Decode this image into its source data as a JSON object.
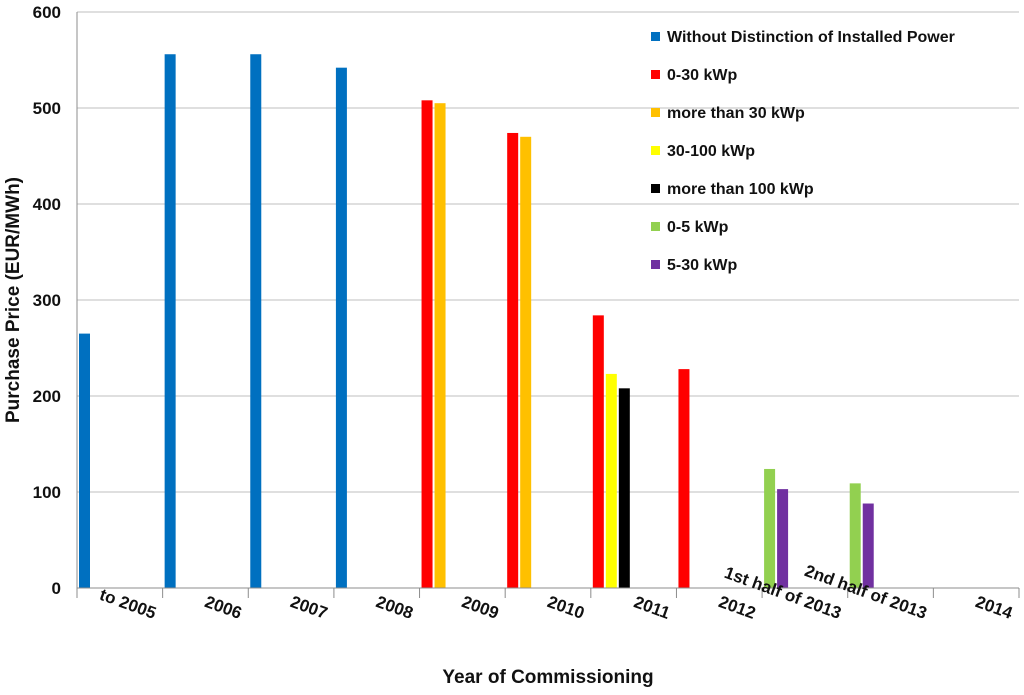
{
  "chart_data": {
    "type": "bar",
    "title": "",
    "xlabel": "Year of Commissioning",
    "ylabel": "Purchase Price (EUR/MWh)",
    "ylim": [
      0,
      600
    ],
    "yticks": [
      0,
      100,
      200,
      300,
      400,
      500,
      600
    ],
    "grid": true,
    "legend_position": "top-right",
    "categories": [
      "to 2005",
      "2006",
      "2007",
      "2008",
      "2009",
      "2010",
      "2011",
      "2012",
      "1st half of 2013",
      "2nd half of 2013",
      "2014"
    ],
    "series": [
      {
        "name": "Without Distinction of Installed Power",
        "color": "#0070C0",
        "values": [
          265,
          556,
          556,
          542,
          null,
          null,
          null,
          null,
          null,
          null,
          null
        ]
      },
      {
        "name": "0-30 kWp",
        "color": "#FF0000",
        "values": [
          null,
          null,
          null,
          null,
          508,
          474,
          284,
          228,
          null,
          null,
          null
        ]
      },
      {
        "name": "more than 30 kWp",
        "color": "#FFC000",
        "values": [
          null,
          null,
          null,
          null,
          505,
          470,
          null,
          null,
          null,
          null,
          null
        ]
      },
      {
        "name": "30-100 kWp",
        "color": "#FFFF00",
        "values": [
          null,
          null,
          null,
          null,
          null,
          null,
          223,
          null,
          null,
          null,
          null
        ]
      },
      {
        "name": "more than 100 kWp",
        "color": "#000000",
        "values": [
          null,
          null,
          null,
          null,
          null,
          null,
          208,
          null,
          null,
          null,
          null
        ]
      },
      {
        "name": "0-5 kWp",
        "color": "#92D050",
        "values": [
          null,
          null,
          null,
          null,
          null,
          null,
          null,
          null,
          124,
          109,
          null
        ]
      },
      {
        "name": "5-30 kWp",
        "color": "#7030A0",
        "values": [
          null,
          null,
          null,
          null,
          null,
          null,
          null,
          null,
          103,
          88,
          null
        ]
      }
    ]
  }
}
